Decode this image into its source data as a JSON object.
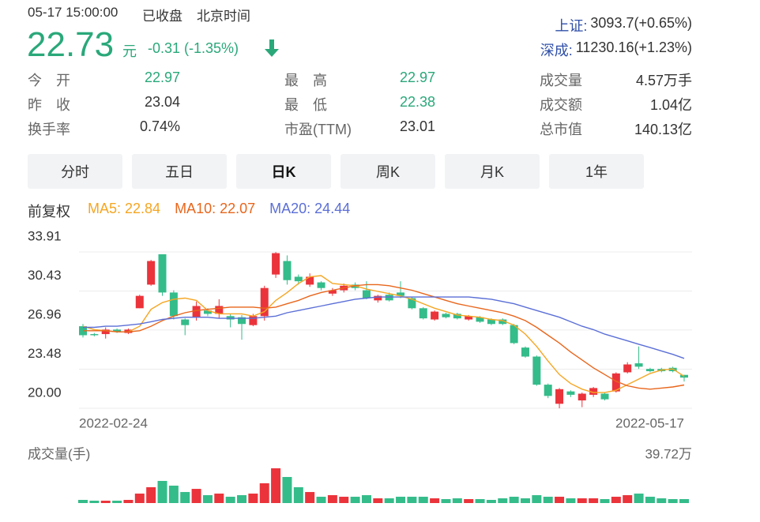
{
  "header": {
    "time": "05-17 15:00:00",
    "status": "已收盘",
    "zone": "北京时间",
    "price": "22.73",
    "unit": "元",
    "change": "-0.31 (-1.35%)",
    "color": "#2aa87a"
  },
  "indices": [
    {
      "name": "上证:",
      "value": "3093.7(+0.65%)"
    },
    {
      "name": "深成:",
      "value": "11230.16(+1.23%)"
    }
  ],
  "stats": [
    [
      {
        "label": "今　开",
        "value": "22.97",
        "color": "#2aa87a"
      },
      {
        "label": "最　高",
        "value": "22.97",
        "color": "#2aa87a"
      },
      {
        "label": "成交量",
        "value": "4.57万手"
      }
    ],
    [
      {
        "label": "昨　收",
        "value": "23.04"
      },
      {
        "label": "最　低",
        "value": "22.38",
        "color": "#2aa87a"
      },
      {
        "label": "成交额",
        "value": "1.04亿"
      }
    ],
    [
      {
        "label": "换手率",
        "value": "0.74%"
      },
      {
        "label": "市盈(TTM)",
        "value": "23.01"
      },
      {
        "label": "总市值",
        "value": "140.13亿"
      }
    ]
  ],
  "tabs": [
    "分时",
    "五日",
    "日K",
    "周K",
    "月K",
    "1年"
  ],
  "active_tab": 2,
  "adjust": "前复权",
  "chart_data": [
    {
      "type": "candlestick",
      "up_color": "#eb333b",
      "down_color": "#34bc8a",
      "categories": [
        "2022-02-24",
        null,
        null,
        null,
        null,
        null,
        null,
        null,
        null,
        null,
        null,
        null,
        null,
        null,
        null,
        null,
        null,
        null,
        null,
        null,
        null,
        null,
        null,
        null,
        null,
        null,
        null,
        null,
        null,
        null,
        null,
        null,
        null,
        null,
        null,
        null,
        null,
        null,
        null,
        null,
        null,
        null,
        null,
        null,
        null,
        null,
        null,
        null,
        null,
        null,
        null,
        null,
        null,
        "2022-05-17"
      ],
      "open": [
        27.3,
        26.6,
        26.6,
        27.0,
        26.7,
        28.9,
        31.0,
        33.7,
        30.3,
        27.9,
        28.1,
        28.7,
        28.4,
        28.2,
        28.1,
        27.4,
        28.2,
        31.9,
        33.1,
        31.7,
        31.0,
        31.2,
        30.2,
        30.5,
        31.0,
        30.5,
        29.6,
        30.1,
        30.3,
        29.8,
        28.9,
        27.9,
        28.4,
        28.4,
        27.9,
        28.1,
        27.9,
        27.9,
        27.4,
        25.4,
        24.6,
        22.1,
        20.4,
        21.5,
        20.7,
        21.2,
        21.3,
        21.5,
        23.2,
        24.0,
        23.5,
        23.5,
        23.6,
        22.97
      ],
      "close": [
        26.5,
        26.5,
        27.0,
        26.8,
        27.0,
        30.0,
        33.1,
        30.3,
        28.2,
        27.4,
        29.1,
        28.4,
        29.1,
        27.9,
        27.5,
        28.2,
        30.7,
        33.8,
        31.4,
        31.3,
        31.7,
        30.7,
        30.5,
        30.9,
        30.7,
        29.8,
        30.0,
        29.6,
        30.0,
        28.9,
        28.0,
        28.6,
        28.1,
        28.0,
        28.2,
        27.7,
        27.5,
        27.5,
        25.8,
        24.6,
        22.1,
        21.1,
        21.7,
        21.2,
        21.3,
        21.8,
        20.8,
        23.1,
        23.9,
        23.7,
        23.3,
        23.3,
        23.3,
        22.73
      ],
      "high": [
        27.5,
        26.7,
        27.2,
        27.1,
        27.1,
        30.1,
        33.2,
        33.7,
        30.5,
        28.0,
        29.5,
        28.9,
        29.7,
        28.4,
        28.3,
        28.4,
        30.9,
        33.9,
        33.6,
        31.9,
        32.0,
        31.3,
        30.7,
        31.1,
        31.2,
        31.3,
        30.1,
        30.3,
        31.3,
        29.9,
        29.0,
        28.7,
        28.5,
        28.5,
        28.3,
        28.2,
        28.0,
        28.0,
        27.5,
        25.5,
        24.7,
        22.2,
        21.8,
        21.6,
        21.4,
        21.9,
        21.4,
        23.2,
        24.1,
        25.5,
        23.6,
        23.6,
        23.7,
        22.97
      ],
      "low": [
        26.3,
        26.4,
        26.2,
        26.7,
        26.6,
        28.9,
        30.9,
        30.0,
        27.9,
        26.5,
        27.8,
        28.2,
        28.0,
        27.2,
        26.1,
        27.3,
        27.8,
        31.6,
        31.0,
        31.0,
        30.8,
        30.5,
        30.0,
        30.3,
        30.5,
        29.7,
        29.4,
        29.5,
        29.8,
        28.8,
        27.9,
        27.8,
        28.0,
        27.9,
        27.8,
        27.6,
        27.4,
        27.4,
        25.7,
        24.5,
        22.0,
        20.9,
        20.0,
        21.0,
        20.1,
        21.0,
        20.7,
        21.4,
        23.1,
        23.5,
        23.2,
        23.2,
        23.2,
        22.38
      ],
      "series": [
        {
          "name": "MA5:",
          "color": "#f5a623",
          "values": [
            27.3,
            27.0,
            26.9,
            26.8,
            26.8,
            27.3,
            28.8,
            29.4,
            29.7,
            29.8,
            29.6,
            28.7,
            28.4,
            28.4,
            28.4,
            28.2,
            28.6,
            29.6,
            30.3,
            31.1,
            31.7,
            31.8,
            31.1,
            31.0,
            30.9,
            30.6,
            30.4,
            30.2,
            30.0,
            29.7,
            29.3,
            28.9,
            28.6,
            28.3,
            28.2,
            28.1,
            27.9,
            27.8,
            27.4,
            26.6,
            25.5,
            24.2,
            23.0,
            22.2,
            21.7,
            21.4,
            21.4,
            21.6,
            22.1,
            22.6,
            23.1,
            23.4,
            23.5,
            22.84
          ]
        },
        {
          "name": "MA10:",
          "color": "#e8661c",
          "values": [
            26.9,
            26.9,
            26.9,
            26.8,
            26.8,
            26.9,
            27.3,
            27.8,
            28.2,
            28.5,
            28.7,
            28.8,
            28.9,
            29.0,
            29.0,
            29.0,
            28.9,
            29.0,
            29.3,
            29.6,
            30.0,
            30.3,
            30.5,
            30.7,
            30.9,
            31.0,
            31.0,
            30.9,
            30.7,
            30.5,
            30.2,
            29.9,
            29.6,
            29.3,
            29.1,
            28.9,
            28.7,
            28.5,
            28.2,
            27.8,
            27.2,
            26.5,
            25.8,
            25.0,
            24.3,
            23.6,
            23.0,
            22.4,
            22.0,
            21.8,
            21.7,
            21.8,
            21.9,
            22.07
          ]
        },
        {
          "name": "MA20:",
          "color": "#5b6fd6",
          "values": [
            27.2,
            27.2,
            27.3,
            27.3,
            27.4,
            27.5,
            27.7,
            27.9,
            28.0,
            28.1,
            28.1,
            28.1,
            28.0,
            28.0,
            28.0,
            28.0,
            28.1,
            28.2,
            28.5,
            28.7,
            28.9,
            29.1,
            29.3,
            29.5,
            29.7,
            29.8,
            29.9,
            29.9,
            29.9,
            29.9,
            29.9,
            29.9,
            29.9,
            29.9,
            29.9,
            29.8,
            29.7,
            29.5,
            29.3,
            29.0,
            28.7,
            28.4,
            28.1,
            27.7,
            27.3,
            27.0,
            26.6,
            26.3,
            26.0,
            25.7,
            25.4,
            25.1,
            24.8,
            24.44
          ]
        }
      ],
      "ylim": [
        20.0,
        33.91
      ],
      "yticks": [
        {
          "value": 20,
          "label": "20.00"
        },
        23.48,
        26.96,
        30.43,
        33.91
      ],
      "grid": true
    },
    {
      "type": "bar",
      "y_label": "成交量(手)",
      "values": [
        3.6,
        2.7,
        2.7,
        2.7,
        3.6,
        10.8,
        18.1,
        25.3,
        19.9,
        12.6,
        16.2,
        9.0,
        10.8,
        7.2,
        9.0,
        10.8,
        22.6,
        39.72,
        29.8,
        18.1,
        12.6,
        7.2,
        9.0,
        7.2,
        7.2,
        9.0,
        5.4,
        5.4,
        7.2,
        7.2,
        7.2,
        5.4,
        4.5,
        5.4,
        4.5,
        4.5,
        3.6,
        5.4,
        7.2,
        5.4,
        9.0,
        7.2,
        7.2,
        5.4,
        5.4,
        5.4,
        4.5,
        7.2,
        9.0,
        10.8,
        7.2,
        5.4,
        4.5,
        4.5
      ],
      "ylim": [
        0,
        39.72
      ],
      "yticks": [
        {
          "value": 39.72,
          "label": "39.72万"
        }
      ]
    }
  ]
}
